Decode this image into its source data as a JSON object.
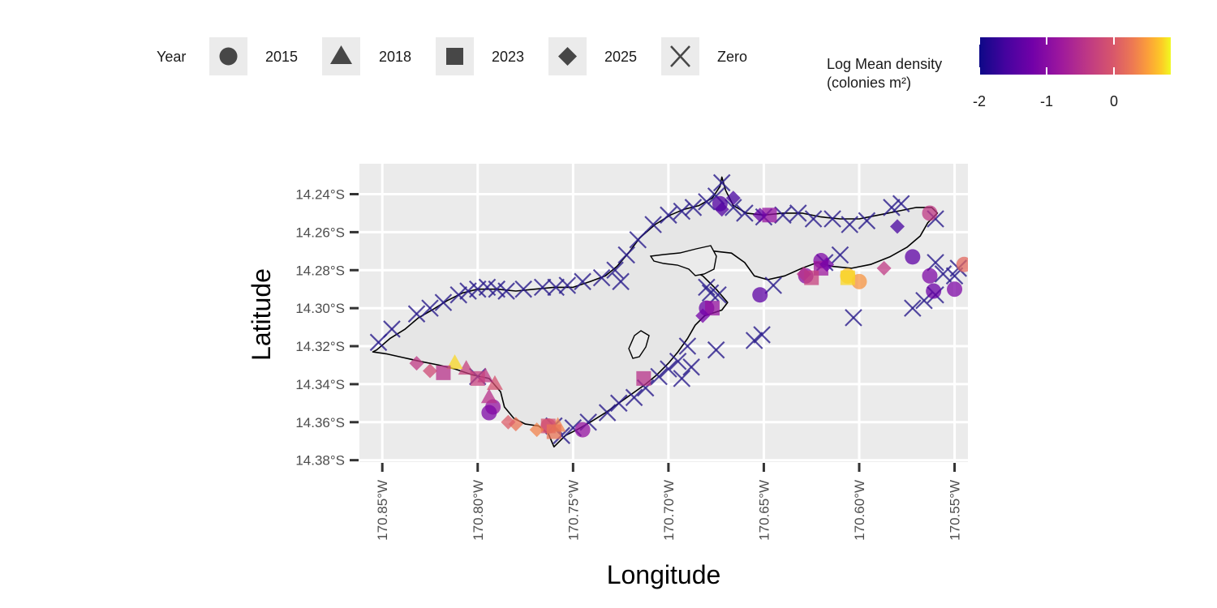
{
  "legend": {
    "shape_title": "Year",
    "shape_keys": [
      {
        "label": "2015",
        "shape": "circle"
      },
      {
        "label": "2018",
        "shape": "triangle"
      },
      {
        "label": "2023",
        "shape": "square"
      },
      {
        "label": "2025",
        "shape": "diamond"
      },
      {
        "label": "Zero",
        "shape": "cross"
      }
    ],
    "color_title_line1": "Log Mean density",
    "color_title_line2": "(colonies m²)",
    "color_ticks": [
      "-2",
      "-1",
      "0"
    ]
  },
  "chart_data": {
    "type": "scatter",
    "xlabel": "Longitude",
    "ylabel": "Latitude",
    "x_tick_labels": [
      "170.85°W",
      "170.80°W",
      "170.75°W",
      "170.70°W",
      "170.65°W",
      "170.60°W",
      "170.55°W"
    ],
    "y_tick_labels": [
      "14.24°S",
      "14.26°S",
      "14.28°S",
      "14.30°S",
      "14.32°S",
      "14.34°S",
      "14.36°S",
      "14.38°S"
    ],
    "x_ticks": [
      -170.85,
      -170.8,
      -170.75,
      -170.7,
      -170.65,
      -170.6,
      -170.55
    ],
    "y_ticks": [
      -14.24,
      -14.26,
      -14.28,
      -14.3,
      -14.32,
      -14.34,
      -14.36,
      -14.38
    ],
    "xlim": [
      -170.862,
      -170.543
    ],
    "ylim": [
      -14.381,
      -14.224
    ],
    "grid": true,
    "colormap": "plasma",
    "color_range": [
      -2,
      0.8
    ],
    "colors": {
      "panel_background": "#ebebeb",
      "grid": "#ffffff",
      "island_fill": "#e6e6e6",
      "coastline": "#000000",
      "zero_marker": "#2b1d8c"
    },
    "coastline": [
      [
        -170.853,
        -14.322
      ],
      [
        -170.846,
        -14.316
      ],
      [
        -170.838,
        -14.311
      ],
      [
        -170.831,
        -14.305
      ],
      [
        -170.824,
        -14.301
      ],
      [
        -170.816,
        -14.296
      ],
      [
        -170.808,
        -14.292
      ],
      [
        -170.8,
        -14.29
      ],
      [
        -170.79,
        -14.29
      ],
      [
        -170.78,
        -14.291
      ],
      [
        -170.77,
        -14.29
      ],
      [
        -170.76,
        -14.289
      ],
      [
        -170.75,
        -14.289
      ],
      [
        -170.741,
        -14.286
      ],
      [
        -170.733,
        -14.283
      ],
      [
        -170.727,
        -14.278
      ],
      [
        -170.721,
        -14.271
      ],
      [
        -170.715,
        -14.263
      ],
      [
        -170.707,
        -14.256
      ],
      [
        -170.699,
        -14.251
      ],
      [
        -170.692,
        -14.248
      ],
      [
        -170.684,
        -14.246
      ],
      [
        -170.677,
        -14.242
      ],
      [
        -170.673,
        -14.236
      ],
      [
        -170.672,
        -14.231
      ],
      [
        -170.67,
        -14.238
      ],
      [
        -170.666,
        -14.246
      ],
      [
        -170.659,
        -14.25
      ],
      [
        -170.65,
        -14.251
      ],
      [
        -170.64,
        -14.25
      ],
      [
        -170.63,
        -14.25
      ],
      [
        -170.62,
        -14.252
      ],
      [
        -170.61,
        -14.253
      ],
      [
        -170.6,
        -14.253
      ],
      [
        -170.59,
        -14.251
      ],
      [
        -170.58,
        -14.249
      ],
      [
        -170.57,
        -14.247
      ],
      [
        -170.562,
        -14.247
      ],
      [
        -170.559,
        -14.25
      ],
      [
        -170.564,
        -14.255
      ],
      [
        -170.568,
        -14.262
      ],
      [
        -170.575,
        -14.268
      ],
      [
        -170.584,
        -14.273
      ],
      [
        -170.594,
        -14.277
      ],
      [
        -170.604,
        -14.279
      ],
      [
        -170.614,
        -14.278
      ],
      [
        -170.622,
        -14.276
      ],
      [
        -170.63,
        -14.279
      ],
      [
        -170.639,
        -14.283
      ],
      [
        -170.648,
        -14.285
      ],
      [
        -170.655,
        -14.283
      ],
      [
        -170.66,
        -14.276
      ],
      [
        -170.667,
        -14.271
      ],
      [
        -170.676,
        -14.27
      ],
      [
        -170.685,
        -14.273
      ],
      [
        -170.692,
        -14.275
      ],
      [
        -170.69,
        -14.279
      ],
      [
        -170.682,
        -14.283
      ],
      [
        -170.675,
        -14.29
      ],
      [
        -170.669,
        -14.297
      ],
      [
        -170.672,
        -14.301
      ],
      [
        -170.681,
        -14.304
      ],
      [
        -170.686,
        -14.309
      ],
      [
        -170.69,
        -14.316
      ],
      [
        -170.695,
        -14.323
      ],
      [
        -170.7,
        -14.329
      ],
      [
        -170.706,
        -14.335
      ],
      [
        -170.712,
        -14.34
      ],
      [
        -170.719,
        -14.345
      ],
      [
        -170.726,
        -14.35
      ],
      [
        -170.733,
        -14.355
      ],
      [
        -170.741,
        -14.36
      ],
      [
        -170.748,
        -14.364
      ],
      [
        -170.754,
        -14.367
      ],
      [
        -170.76,
        -14.373
      ],
      [
        -170.763,
        -14.366
      ],
      [
        -170.768,
        -14.362
      ],
      [
        -170.775,
        -14.361
      ],
      [
        -170.781,
        -14.358
      ],
      [
        -170.786,
        -14.352
      ],
      [
        -170.788,
        -14.344
      ],
      [
        -170.794,
        -14.337
      ],
      [
        -170.803,
        -14.335
      ],
      [
        -170.812,
        -14.332
      ],
      [
        -170.82,
        -14.33
      ],
      [
        -170.83,
        -14.328
      ],
      [
        -170.839,
        -14.326
      ],
      [
        -170.848,
        -14.324
      ],
      [
        -170.855,
        -14.323
      ]
    ],
    "zero_points": [
      [
        -170.852,
        -14.318
      ],
      [
        -170.845,
        -14.311
      ],
      [
        -170.832,
        -14.303
      ],
      [
        -170.825,
        -14.3
      ],
      [
        -170.818,
        -14.297
      ],
      [
        -170.81,
        -14.293
      ],
      [
        -170.805,
        -14.291
      ],
      [
        -170.8,
        -14.29
      ],
      [
        -170.795,
        -14.289
      ],
      [
        -170.79,
        -14.29
      ],
      [
        -170.785,
        -14.291
      ],
      [
        -170.776,
        -14.29
      ],
      [
        -170.766,
        -14.289
      ],
      [
        -170.759,
        -14.289
      ],
      [
        -170.753,
        -14.288
      ],
      [
        -170.745,
        -14.286
      ],
      [
        -170.735,
        -14.284
      ],
      [
        -170.728,
        -14.28
      ],
      [
        -170.722,
        -14.272
      ],
      [
        -170.716,
        -14.264
      ],
      [
        -170.708,
        -14.256
      ],
      [
        -170.7,
        -14.251
      ],
      [
        -170.693,
        -14.249
      ],
      [
        -170.687,
        -14.247
      ],
      [
        -170.68,
        -14.244
      ],
      [
        -170.675,
        -14.241
      ],
      [
        -170.672,
        -14.234
      ],
      [
        -170.666,
        -14.247
      ],
      [
        -170.66,
        -14.25
      ],
      [
        -170.65,
        -14.252
      ],
      [
        -170.64,
        -14.251
      ],
      [
        -170.632,
        -14.25
      ],
      [
        -170.624,
        -14.253
      ],
      [
        -170.614,
        -14.253
      ],
      [
        -170.605,
        -14.256
      ],
      [
        -170.596,
        -14.254
      ],
      [
        -170.583,
        -14.247
      ],
      [
        -170.578,
        -14.245
      ],
      [
        -170.56,
        -14.253
      ],
      [
        -170.61,
        -14.272
      ],
      [
        -170.618,
        -14.276
      ],
      [
        -170.645,
        -14.288
      ],
      [
        -170.603,
        -14.305
      ],
      [
        -170.572,
        -14.3
      ],
      [
        -170.566,
        -14.296
      ],
      [
        -170.56,
        -14.293
      ],
      [
        -170.556,
        -14.282
      ],
      [
        -170.55,
        -14.283
      ],
      [
        -170.548,
        -14.279
      ],
      [
        -170.56,
        -14.276
      ],
      [
        -170.68,
        -14.289
      ],
      [
        -170.674,
        -14.293
      ],
      [
        -170.678,
        -14.292
      ],
      [
        -170.651,
        -14.314
      ],
      [
        -170.655,
        -14.317
      ],
      [
        -170.675,
        -14.322
      ],
      [
        -170.69,
        -14.32
      ],
      [
        -170.695,
        -14.328
      ],
      [
        -170.7,
        -14.332
      ],
      [
        -170.705,
        -14.336
      ],
      [
        -170.712,
        -14.342
      ],
      [
        -170.718,
        -14.347
      ],
      [
        -170.726,
        -14.35
      ],
      [
        -170.732,
        -14.355
      ],
      [
        -170.742,
        -14.36
      ],
      [
        -170.75,
        -14.363
      ],
      [
        -170.756,
        -14.367
      ],
      [
        -170.76,
        -14.362
      ],
      [
        -170.8,
        -14.336
      ],
      [
        -170.725,
        -14.286
      ],
      [
        -170.693,
        -14.337
      ],
      [
        -170.688,
        -14.331
      ]
    ],
    "series": [
      {
        "name": "2015",
        "shape": "circle",
        "points": [
          [
            -170.763,
            -14.362,
            -0.2
          ],
          [
            -170.745,
            -14.364,
            -0.9
          ],
          [
            -170.792,
            -14.352,
            -0.9
          ],
          [
            -170.794,
            -14.355,
            -1.1
          ],
          [
            -170.628,
            -14.283,
            -1.0
          ],
          [
            -170.652,
            -14.293,
            -1.4
          ],
          [
            -170.6,
            -14.286,
            0.4
          ],
          [
            -170.606,
            -14.283,
            0.6
          ],
          [
            -170.62,
            -14.275,
            -1.1
          ],
          [
            -170.572,
            -14.273,
            -1.4
          ],
          [
            -170.563,
            -14.25,
            -0.4
          ],
          [
            -170.563,
            -14.283,
            -1.1
          ],
          [
            -170.561,
            -14.291,
            -1.3
          ],
          [
            -170.55,
            -14.29,
            -1.1
          ],
          [
            -170.545,
            -14.277,
            0.1
          ],
          [
            -170.673,
            -14.245,
            -1.5
          ],
          [
            -170.68,
            -14.3,
            -1.3
          ]
        ]
      },
      {
        "name": "2018",
        "shape": "triangle",
        "points": [
          [
            -170.791,
            -14.34,
            -0.1
          ],
          [
            -170.794,
            -14.347,
            -0.5
          ],
          [
            -170.806,
            -14.332,
            -0.3
          ],
          [
            -170.796,
            -14.336,
            -0.4
          ],
          [
            -170.758,
            -14.362,
            0.3
          ],
          [
            -170.812,
            -14.329,
            0.7
          ]
        ]
      },
      {
        "name": "2023",
        "shape": "square",
        "points": [
          [
            -170.818,
            -14.334,
            -0.5
          ],
          [
            -170.8,
            -14.337,
            -0.3
          ],
          [
            -170.713,
            -14.337,
            -0.5
          ],
          [
            -170.677,
            -14.3,
            -0.9
          ],
          [
            -170.647,
            -14.251,
            -0.9
          ],
          [
            -170.62,
            -14.279,
            -0.8
          ],
          [
            -170.625,
            -14.284,
            -0.3
          ],
          [
            -170.606,
            -14.284,
            0.7
          ],
          [
            -170.763,
            -14.362,
            -0.1
          ],
          [
            -170.76,
            -14.365,
            0.2
          ]
        ]
      },
      {
        "name": "2025",
        "shape": "diamond",
        "points": [
          [
            -170.832,
            -14.329,
            -0.4
          ],
          [
            -170.825,
            -14.333,
            -0.2
          ],
          [
            -170.78,
            -14.361,
            0.2
          ],
          [
            -170.784,
            -14.36,
            0.0
          ],
          [
            -170.769,
            -14.364,
            0.3
          ],
          [
            -170.672,
            -14.248,
            -1.5
          ],
          [
            -170.666,
            -14.242,
            -1.6
          ],
          [
            -170.652,
            -14.251,
            -1.3
          ],
          [
            -170.682,
            -14.304,
            -1.2
          ],
          [
            -170.587,
            -14.279,
            -0.4
          ],
          [
            -170.58,
            -14.257,
            -1.6
          ],
          [
            -170.629,
            -14.282,
            -0.5
          ],
          [
            -170.617,
            -14.277,
            -1.2
          ]
        ]
      }
    ]
  }
}
